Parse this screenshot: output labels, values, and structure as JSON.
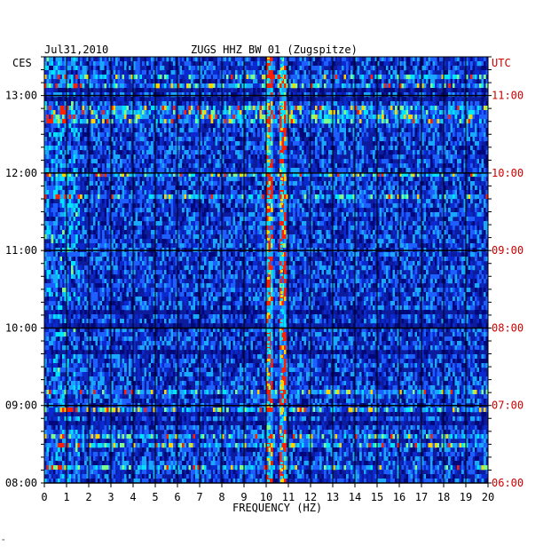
{
  "header": {
    "date": "Jul31,2010",
    "station": "ZUGS HHZ BW 01 (Zugspitze)",
    "left_tz": "CES",
    "right_tz": "UTC"
  },
  "chart_data": {
    "type": "heatmap",
    "title": "ZUGS HHZ BW 01 (Zugspitze)",
    "xlabel": "FREQUENCY (HZ)",
    "ylabel": "",
    "xlim": [
      0,
      20
    ],
    "x_ticks": [
      "0",
      "1",
      "2",
      "3",
      "4",
      "5",
      "6",
      "7",
      "8",
      "9",
      "10",
      "11",
      "12",
      "13",
      "14",
      "15",
      "16",
      "17",
      "18",
      "19",
      "20"
    ],
    "left_y_ticks": [
      "13:00",
      "12:00",
      "11:00",
      "10:00",
      "09:00",
      "08:00"
    ],
    "right_y_ticks": [
      "11:00",
      "10:00",
      "09:00",
      "08:00",
      "07:00",
      "06:00"
    ],
    "time_range_ces": [
      "08:00",
      "13:30"
    ],
    "grid": true,
    "colors": {
      "background": "#0c1c9c",
      "low": "#00007a",
      "mid": "#1d5fff",
      "high": "#00e5ff",
      "peak": "#ffd200",
      "extreme": "#ff2000",
      "utc_label": "#cc0000"
    },
    "persistent_lines_hz": [
      10.1,
      10.7
    ],
    "notes_marker": "\""
  }
}
